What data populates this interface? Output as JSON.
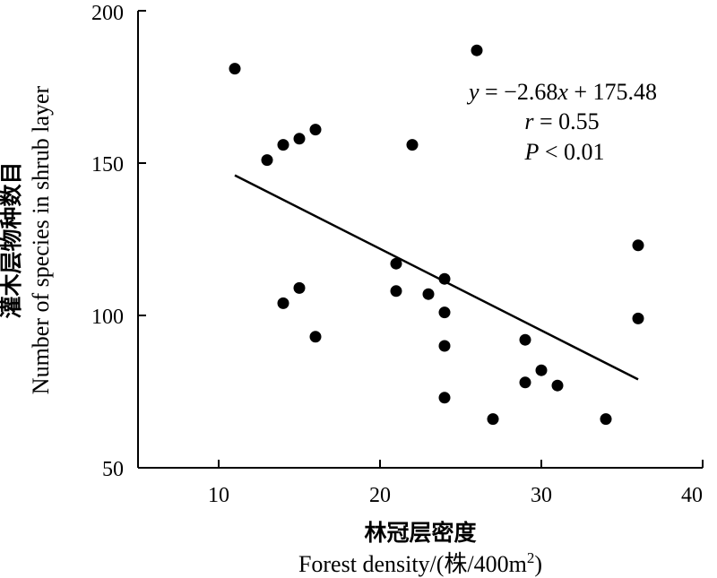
{
  "chart_data": {
    "type": "scatter",
    "xlim": [
      5,
      40
    ],
    "ylim": [
      50,
      200
    ],
    "x_ticks": [
      "10",
      "20",
      "30",
      "40"
    ],
    "y_ticks": [
      "50",
      "100",
      "150",
      "200"
    ],
    "xlabel_cn": "林冠层密度",
    "xlabel_en": "Forest density/(株/400m",
    "xlabel_sup": "2",
    "xlabel_tail": ")",
    "ylabel_cn": "灌木层物种数目",
    "ylabel_en": "Number of species in shrub layer",
    "annotation": {
      "eq_y": "y",
      "eq_mid": " = −2.68",
      "eq_x": "x",
      "eq_tail": " + 175.48",
      "r_var": "r",
      "r_tail": " = 0.55",
      "p_var": "P",
      "p_tail": " < 0.01"
    },
    "trendline": {
      "slope": -2.68,
      "intercept": 175.48,
      "x_range": [
        11,
        36
      ]
    },
    "points": [
      {
        "x": 11,
        "y": 181
      },
      {
        "x": 13,
        "y": 151
      },
      {
        "x": 14,
        "y": 156
      },
      {
        "x": 14,
        "y": 104
      },
      {
        "x": 15,
        "y": 158
      },
      {
        "x": 15,
        "y": 109
      },
      {
        "x": 16,
        "y": 161
      },
      {
        "x": 16,
        "y": 93
      },
      {
        "x": 21,
        "y": 117
      },
      {
        "x": 21,
        "y": 108
      },
      {
        "x": 22,
        "y": 156
      },
      {
        "x": 23,
        "y": 107
      },
      {
        "x": 24,
        "y": 112
      },
      {
        "x": 24,
        "y": 101
      },
      {
        "x": 24,
        "y": 90
      },
      {
        "x": 24,
        "y": 73
      },
      {
        "x": 26,
        "y": 187
      },
      {
        "x": 27,
        "y": 66
      },
      {
        "x": 29,
        "y": 92
      },
      {
        "x": 29,
        "y": 78
      },
      {
        "x": 30,
        "y": 82
      },
      {
        "x": 31,
        "y": 77
      },
      {
        "x": 34,
        "y": 66
      },
      {
        "x": 36,
        "y": 123
      },
      {
        "x": 36,
        "y": 99
      }
    ],
    "grid": false,
    "legend": "none",
    "colors": {
      "points": "#000000",
      "line": "#000000",
      "axes": "#000000"
    }
  }
}
